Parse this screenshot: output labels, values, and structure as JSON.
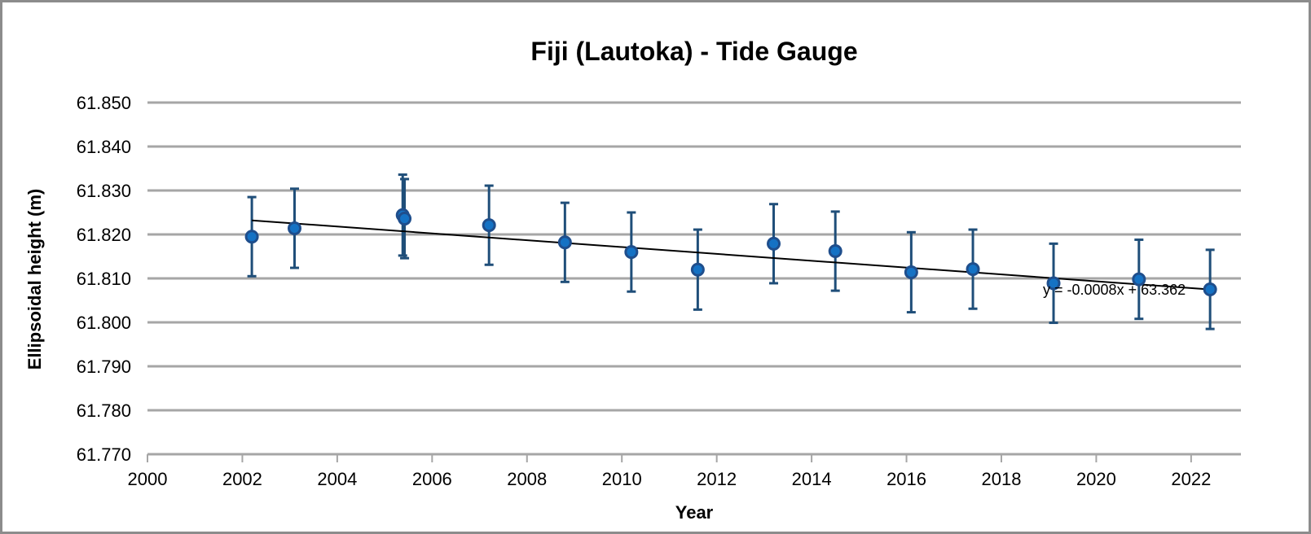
{
  "frame": {
    "background_color": "#ffffff",
    "border_color": "#8c8c8c"
  },
  "chart_data": {
    "type": "scatter",
    "title": "Fiji (Lautoka) - Tide Gauge",
    "xlabel": "Year",
    "ylabel": "Ellipsoidal height (m)",
    "xlim": [
      2000,
      2023.05
    ],
    "ylim": [
      61.77,
      61.85
    ],
    "grid": "horizontal",
    "legend": "none",
    "x_ticks": [
      {
        "v": 2000,
        "label": "2000"
      },
      {
        "v": 2002,
        "label": "2002"
      },
      {
        "v": 2004,
        "label": "2004"
      },
      {
        "v": 2006,
        "label": "2006"
      },
      {
        "v": 2008,
        "label": "2008"
      },
      {
        "v": 2010,
        "label": "2010"
      },
      {
        "v": 2012,
        "label": "2012"
      },
      {
        "v": 2014,
        "label": "2014"
      },
      {
        "v": 2016,
        "label": "2016"
      },
      {
        "v": 2018,
        "label": "2018"
      },
      {
        "v": 2020,
        "label": "2020"
      },
      {
        "v": 2022,
        "label": "2022"
      }
    ],
    "y_ticks": [
      {
        "v": 61.85,
        "label": "61.850"
      },
      {
        "v": 61.84,
        "label": "61.840"
      },
      {
        "v": 61.83,
        "label": "61.830"
      },
      {
        "v": 61.82,
        "label": "61.820"
      },
      {
        "v": 61.81,
        "label": "61.810"
      },
      {
        "v": 61.8,
        "label": "61.800"
      },
      {
        "v": 61.79,
        "label": "61.790"
      },
      {
        "v": 61.78,
        "label": "61.780"
      },
      {
        "v": 61.77,
        "label": "61.770"
      }
    ],
    "points": [
      {
        "x": 2002.2,
        "y": 61.8195,
        "e": 0.009
      },
      {
        "x": 2003.1,
        "y": 61.8214,
        "e": 0.009
      },
      {
        "x": 2005.38,
        "y": 61.8244,
        "e": 0.0092
      },
      {
        "x": 2005.42,
        "y": 61.8236,
        "e": 0.009
      },
      {
        "x": 2007.2,
        "y": 61.8221,
        "e": 0.009
      },
      {
        "x": 2008.8,
        "y": 61.8182,
        "e": 0.009
      },
      {
        "x": 2010.2,
        "y": 61.816,
        "e": 0.009
      },
      {
        "x": 2011.6,
        "y": 61.812,
        "e": 0.0091
      },
      {
        "x": 2013.2,
        "y": 61.8179,
        "e": 0.009
      },
      {
        "x": 2014.5,
        "y": 61.8162,
        "e": 0.009
      },
      {
        "x": 2016.1,
        "y": 61.8114,
        "e": 0.0091
      },
      {
        "x": 2017.4,
        "y": 61.8121,
        "e": 0.009
      },
      {
        "x": 2019.1,
        "y": 61.8089,
        "e": 0.009
      },
      {
        "x": 2020.9,
        "y": 61.8098,
        "e": 0.009
      },
      {
        "x": 2022.4,
        "y": 61.8075,
        "e": 0.009
      }
    ],
    "trendline": {
      "x1": 2002.2,
      "y1": 61.8232,
      "x2": 2022.5,
      "y2": 61.8074,
      "equation": "y = -0.0008x + 63.362"
    },
    "colors": {
      "marker_fill": "#1572C4",
      "marker_edge": "#1F4E8C",
      "error_bar": "#1F4E79",
      "gridline": "#A6A6A6",
      "axis": "#A6A6A6",
      "trendline": "#000000",
      "text": "#000000"
    }
  }
}
